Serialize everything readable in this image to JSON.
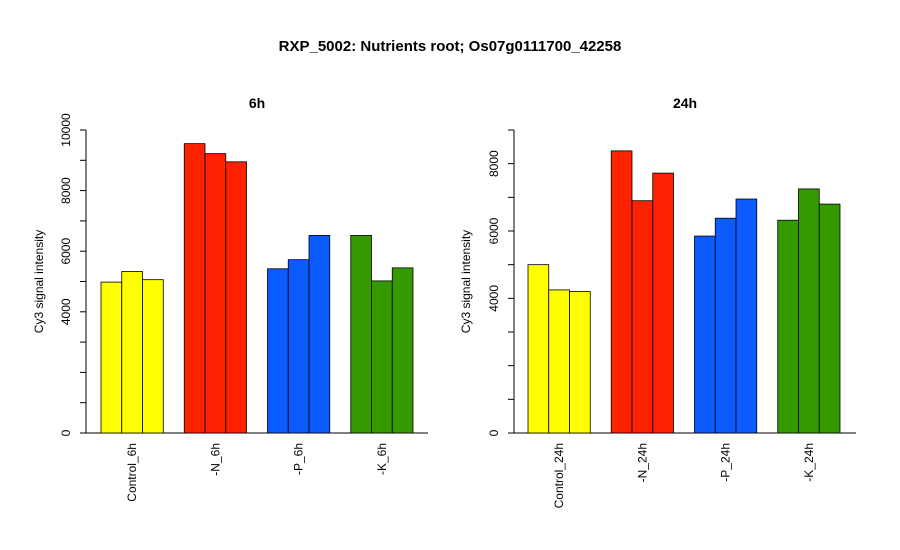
{
  "main_title": "RXP_5002: Nutrients root; Os07g0111700_42258",
  "chart_data": [
    {
      "type": "bar",
      "title": "6h",
      "ylabel": "Cy3 signal intensity",
      "xlabel": "",
      "ylim": [
        0,
        10000
      ],
      "yticks": [
        0,
        4000,
        6000,
        8000,
        10000
      ],
      "ytick_labels": [
        "0",
        "4000",
        "6000",
        "8000",
        "10000"
      ],
      "groups": [
        {
          "label": "Control_6h",
          "color": "#ffff00",
          "values": [
            4980,
            5330,
            5060
          ]
        },
        {
          "label": "-N_6h",
          "color": "#ff2200",
          "values": [
            9550,
            9220,
            8950
          ]
        },
        {
          "label": "-P_6h",
          "color": "#0b5bff",
          "values": [
            5420,
            5720,
            6520
          ]
        },
        {
          "label": "-K_6h",
          "color": "#359a00",
          "values": [
            6520,
            5020,
            5450
          ]
        }
      ]
    },
    {
      "type": "bar",
      "title": "24h",
      "ylabel": "Cy3 signal intensity",
      "xlabel": "",
      "ylim": [
        0,
        9000
      ],
      "yticks": [
        0,
        4000,
        6000,
        8000
      ],
      "ytick_labels": [
        "0",
        "4000",
        "6000",
        "8000"
      ],
      "groups": [
        {
          "label": "Control_24h",
          "color": "#ffff00",
          "values": [
            5000,
            4250,
            4200
          ]
        },
        {
          "label": "-N_24h",
          "color": "#ff2200",
          "values": [
            8380,
            6900,
            7720
          ]
        },
        {
          "label": "-P_24h",
          "color": "#0b5bff",
          "values": [
            5850,
            6380,
            6950
          ]
        },
        {
          "label": "-K_24h",
          "color": "#359a00",
          "values": [
            6320,
            7250,
            6800
          ]
        }
      ]
    }
  ]
}
